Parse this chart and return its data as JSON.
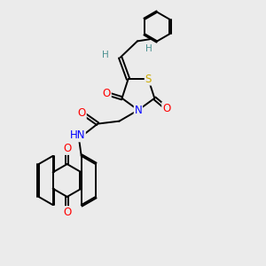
{
  "background_color": "#ebebeb",
  "figsize": [
    3.0,
    3.0
  ],
  "dpi": 100,
  "atom_colors": {
    "O": "#ff0000",
    "N": "#0000ff",
    "S": "#ccaa00",
    "C": "#000000",
    "H": "#4a9090"
  },
  "bond_width": 1.4,
  "font_size_atom": 8.5,
  "font_size_H": 7.5
}
